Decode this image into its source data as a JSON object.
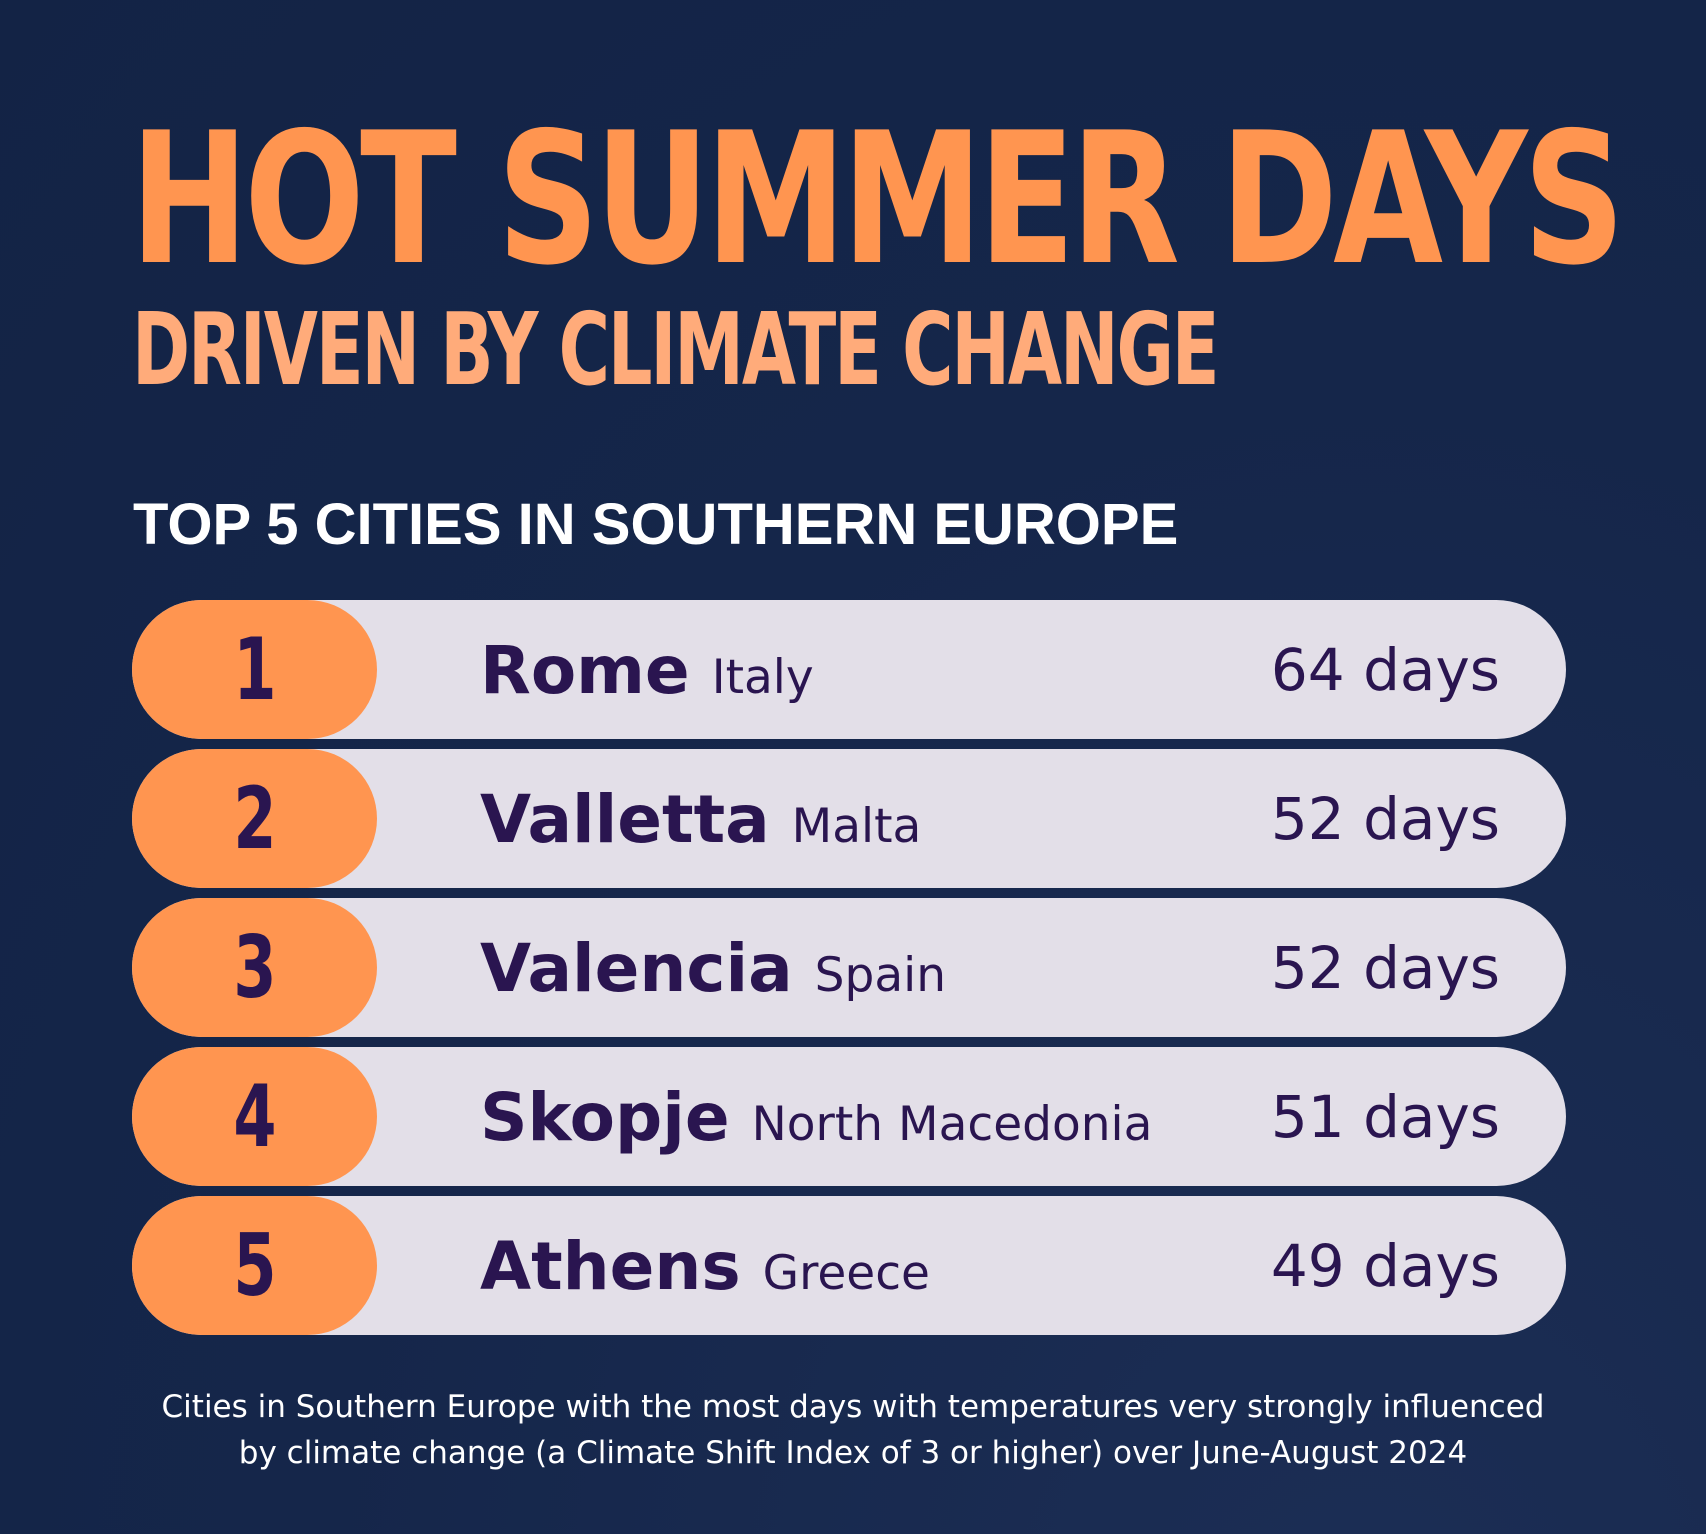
{
  "header": {
    "title": "HOT SUMMER DAYS",
    "subtitle": "DRIVEN BY CLIMATE CHANGE"
  },
  "section": {
    "heading": "TOP 5 CITIES IN SOUTHERN EUROPE"
  },
  "colors": {
    "background": "#15264a",
    "accent_orange": "#ff9550",
    "subtitle_orange": "#ffab7a",
    "row_background": "#e3dfe8",
    "text_purple": "#2a1550"
  },
  "chart_data": {
    "type": "table",
    "title": "HOT SUMMER DAYS",
    "subtitle": "DRIVEN BY CLIMATE CHANGE",
    "columns": [
      "rank",
      "city",
      "country",
      "days"
    ],
    "unit": "days",
    "rows": [
      {
        "rank": "1",
        "city": "Rome",
        "country": "Italy",
        "value": 64,
        "days_label": "64 days"
      },
      {
        "rank": "2",
        "city": "Valletta",
        "country": "Malta",
        "value": 52,
        "days_label": "52 days"
      },
      {
        "rank": "3",
        "city": "Valencia",
        "country": "Spain",
        "value": 52,
        "days_label": "52 days"
      },
      {
        "rank": "4",
        "city": "Skopje",
        "country": "North Macedonia",
        "value": 51,
        "days_label": "51 days"
      },
      {
        "rank": "5",
        "city": "Athens",
        "country": "Greece",
        "value": 49,
        "days_label": "49 days"
      }
    ]
  },
  "footnote": {
    "line1": "Cities in Southern Europe with the most days with temperatures very strongly influenced",
    "line2": "by climate change (a Climate Shift Index of 3 or higher) over June-August 2024"
  }
}
